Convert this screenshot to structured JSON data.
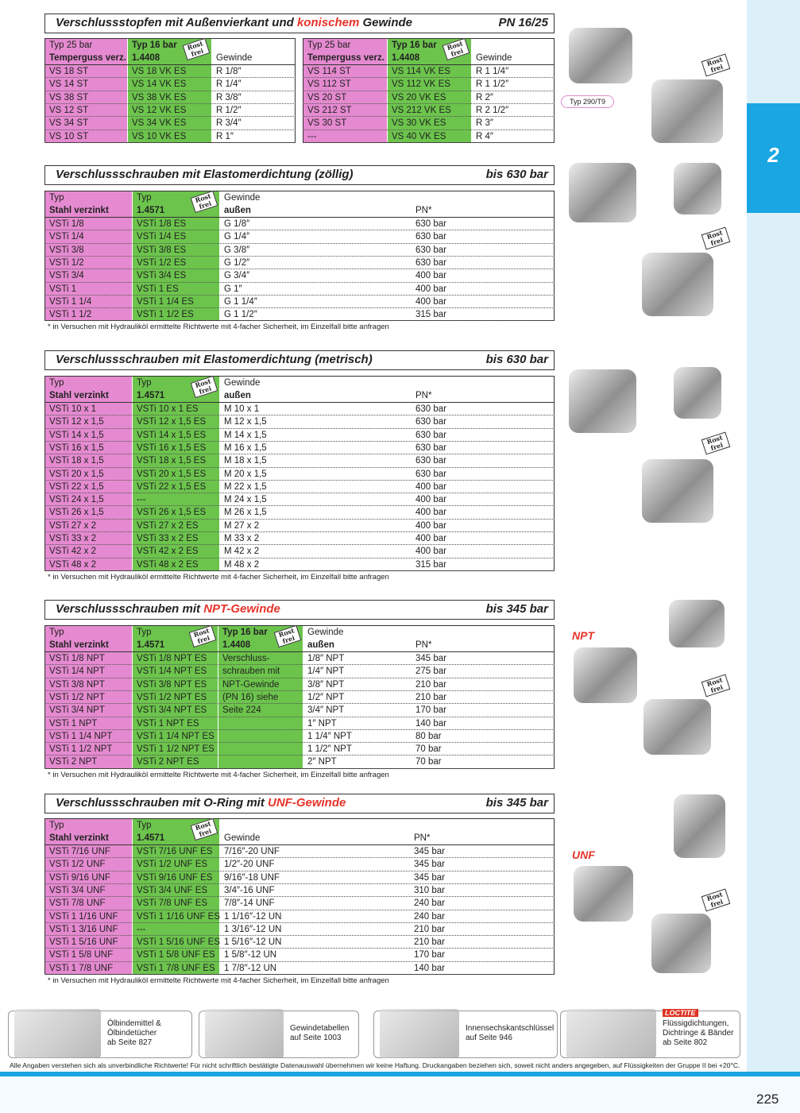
{
  "side_tab": "2",
  "page_number": "225",
  "badge": "Rost frei",
  "image_labels": {
    "type_label": "Typ 290/T9",
    "npt": "NPT",
    "unf": "UNF"
  },
  "sections": [
    {
      "title": [
        {
          "text": "Verschlussstopfen mit Außenvierkant und "
        },
        {
          "text": "konischem",
          "red": true
        },
        {
          "text": " Gewinde"
        }
      ],
      "rating": "PN 16/25",
      "tables": [
        {
          "colors": [
            "#e58ad0",
            "#6cc44c",
            null
          ],
          "headers": [
            [
              "Typ 25 bar",
              "Temperguss verz."
            ],
            [
              "Typ 16 bar",
              "1.4408"
            ],
            [
              "Gewinde"
            ]
          ],
          "rows": [
            [
              "VS 18 ST",
              "VS 18 VK ES",
              "R 1/8″"
            ],
            [
              "VS 14 ST",
              "VS 14 VK ES",
              "R 1/4″"
            ],
            [
              "VS 38 ST",
              "VS 38 VK ES",
              "R 3/8″"
            ],
            [
              "VS 12 ST",
              "VS 12 VK ES",
              "R 1/2″"
            ],
            [
              "VS 34 ST",
              "VS 34 VK ES",
              "R 3/4″"
            ],
            [
              "VS 10 ST",
              "VS 10 VK ES",
              "R 1″"
            ]
          ]
        },
        {
          "colors": [
            "#e58ad0",
            "#6cc44c",
            null
          ],
          "headers": [
            [
              "Typ 25 bar",
              "Temperguss verz."
            ],
            [
              "Typ 16 bar",
              "1.4408"
            ],
            [
              "Gewinde"
            ]
          ],
          "rows": [
            [
              "VS 114 ST",
              "VS 114 VK ES",
              "R 1 1/4″"
            ],
            [
              "VS 112 ST",
              "VS 112 VK ES",
              "R 1 1/2″"
            ],
            [
              "VS 20 ST",
              "VS 20 VK ES",
              "R 2″"
            ],
            [
              "VS 212 ST",
              "VS 212 VK ES",
              "R 2 1/2″"
            ],
            [
              "VS 30 ST",
              "VS 30 VK ES",
              "R 3″"
            ],
            [
              "---",
              "VS 40 VK ES",
              "R 4″"
            ]
          ]
        }
      ]
    },
    {
      "title": [
        {
          "text": "Verschlussschrauben mit Elastomerdichtung (zöllig)"
        }
      ],
      "rating": "bis 630 bar",
      "tables": [
        {
          "colors": [
            "#e58ad0",
            "#6cc44c",
            null,
            null
          ],
          "headers": [
            [
              "Typ",
              "Stahl verzinkt"
            ],
            [
              "Typ",
              "1.4571"
            ],
            [
              "Gewinde",
              "außen"
            ],
            [
              "PN*"
            ]
          ],
          "rows": [
            [
              "VSTi 1/8",
              "VSTi 1/8 ES",
              "G 1/8″",
              "630 bar"
            ],
            [
              "VSTi 1/4",
              "VSTi 1/4 ES",
              "G 1/4″",
              "630 bar"
            ],
            [
              "VSTi 3/8",
              "VSTi 3/8 ES",
              "G 3/8″",
              "630 bar"
            ],
            [
              "VSTi 1/2",
              "VSTi 1/2 ES",
              "G 1/2″",
              "630 bar"
            ],
            [
              "VSTi 3/4",
              "VSTi 3/4 ES",
              "G 3/4″",
              "400 bar"
            ],
            [
              "VSTi 1",
              "VSTi 1 ES",
              "G 1″",
              "400 bar"
            ],
            [
              "VSTi 1 1/4",
              "VSTi 1 1/4 ES",
              "G 1 1/4″",
              "400 bar"
            ],
            [
              "VSTi 1 1/2",
              "VSTi 1 1/2 ES",
              "G 1 1/2″",
              "315 bar"
            ]
          ]
        }
      ],
      "note": "* in Versuchen mit Hydrauliköl ermittelte Richtwerte mit 4-facher Sicherheit, im Einzelfall bitte anfragen"
    },
    {
      "title": [
        {
          "text": "Verschlussschrauben mit Elastomerdichtung (metrisch)"
        }
      ],
      "rating": "bis 630 bar",
      "tables": [
        {
          "colors": [
            "#e58ad0",
            "#6cc44c",
            null,
            null
          ],
          "headers": [
            [
              "Typ",
              "Stahl verzinkt"
            ],
            [
              "Typ",
              "1.4571"
            ],
            [
              "Gewinde",
              "außen"
            ],
            [
              "PN*"
            ]
          ],
          "rows": [
            [
              "VSTi 10 x 1",
              "VSTi 10 x 1 ES",
              "M 10 x 1",
              "630 bar"
            ],
            [
              "VSTi 12 x 1,5",
              "VSTi 12 x 1,5 ES",
              "M 12 x 1,5",
              "630 bar"
            ],
            [
              "VSTi 14 x 1,5",
              "VSTi 14 x 1,5 ES",
              "M 14 x 1,5",
              "630 bar"
            ],
            [
              "VSTi 16 x 1,5",
              "VSTi 16 x 1,5 ES",
              "M 16 x 1,5",
              "630 bar"
            ],
            [
              "VSTi 18 x 1,5",
              "VSTi 18 x 1,5 ES",
              "M 18 x 1,5",
              "630 bar"
            ],
            [
              "VSTi 20 x 1,5",
              "VSTi 20 x 1,5 ES",
              "M 20 x 1,5",
              "630 bar"
            ],
            [
              "VSTi 22 x 1,5",
              "VSTi 22 x 1,5 ES",
              "M 22 x 1,5",
              "400 bar"
            ],
            [
              "VSTi 24 x 1,5",
              "---",
              "M 24 x 1,5",
              "400 bar"
            ],
            [
              "VSTi 26 x 1,5",
              "VSTi 26 x 1,5 ES",
              "M 26 x 1,5",
              "400 bar"
            ],
            [
              "VSTi 27 x 2",
              "VSTi 27 x 2 ES",
              "M 27 x 2",
              "400 bar"
            ],
            [
              "VSTi 33 x 2",
              "VSTi 33 x 2 ES",
              "M 33 x 2",
              "400 bar"
            ],
            [
              "VSTi 42 x 2",
              "VSTi 42 x 2 ES",
              "M 42 x 2",
              "400 bar"
            ],
            [
              "VSTi 48 x 2",
              "VSTi 48 x 2 ES",
              "M 48 x 2",
              "315 bar"
            ]
          ]
        }
      ],
      "note": "* in Versuchen mit Hydrauliköl ermittelte Richtwerte mit 4-facher Sicherheit, im Einzelfall bitte anfragen"
    },
    {
      "title": [
        {
          "text": "Verschlussschrauben mit "
        },
        {
          "text": "NPT-Gewinde",
          "red": true
        }
      ],
      "rating": "bis 345 bar",
      "tables": [
        {
          "colors": [
            "#e58ad0",
            "#6cc44c",
            "#6cc44c",
            null,
            null
          ],
          "headers": [
            [
              "Typ",
              "Stahl verzinkt"
            ],
            [
              "Typ",
              "1.4571"
            ],
            [
              "Typ 16 bar",
              "1.4408"
            ],
            [
              "Gewinde",
              "außen"
            ],
            [
              "PN*"
            ]
          ],
          "rows": [
            [
              "VSTi 1/8 NPT",
              "VSTi 1/8 NPT ES",
              "Verschluss-",
              "1/8″ NPT",
              "345 bar"
            ],
            [
              "VSTi 1/4 NPT",
              "VSTi 1/4 NPT ES",
              "schrauben mit",
              "1/4″ NPT",
              "275 bar"
            ],
            [
              "VSTi 3/8 NPT",
              "VSTi 3/8 NPT ES",
              "NPT-Gewinde",
              "3/8″ NPT",
              "210 bar"
            ],
            [
              "VSTi 1/2 NPT",
              "VSTi 1/2 NPT ES",
              "(PN 16) siehe",
              "1/2″ NPT",
              "210 bar"
            ],
            [
              "VSTi 3/4 NPT",
              "VSTi 3/4 NPT ES",
              "Seite 224",
              "3/4″ NPT",
              "170 bar"
            ],
            [
              "VSTi 1 NPT",
              "VSTi 1 NPT ES",
              null,
              "1″ NPT",
              "140 bar"
            ],
            [
              "VSTi 1 1/4 NPT",
              "VSTi 1 1/4 NPT ES",
              null,
              "1 1/4″ NPT",
              "80 bar"
            ],
            [
              "VSTi 1 1/2 NPT",
              "VSTi 1 1/2 NPT ES",
              null,
              "1 1/2″ NPT",
              "70 bar"
            ],
            [
              "VSTi 2 NPT",
              "VSTi 2 NPT ES",
              null,
              "2″ NPT",
              "70 bar"
            ]
          ]
        }
      ],
      "note": "* in Versuchen mit Hydrauliköl ermittelte Richtwerte mit 4-facher Sicherheit, im Einzelfall bitte anfragen"
    },
    {
      "title": [
        {
          "text": "Verschlussschrauben mit O-Ring mit "
        },
        {
          "text": "UNF-Gewinde",
          "red": true
        }
      ],
      "rating": "bis 345 bar",
      "tables": [
        {
          "colors": [
            "#e58ad0",
            "#6cc44c",
            null,
            null
          ],
          "headers": [
            [
              "Typ",
              "Stahl verzinkt"
            ],
            [
              "Typ",
              "1.4571"
            ],
            [
              "Gewinde"
            ],
            [
              "PN*"
            ]
          ],
          "rows": [
            [
              "VSTi 7/16 UNF",
              "VSTi 7/16 UNF ES",
              "7/16″-20 UNF",
              "345 bar"
            ],
            [
              "VSTi 1/2 UNF",
              "VSTi 1/2 UNF ES",
              "1/2″-20 UNF",
              "345 bar"
            ],
            [
              "VSTi 9/16 UNF",
              "VSTi 9/16 UNF ES",
              "9/16″-18 UNF",
              "345 bar"
            ],
            [
              "VSTi 3/4 UNF",
              "VSTi 3/4 UNF ES",
              "3/4″-16 UNF",
              "310 bar"
            ],
            [
              "VSTi 7/8 UNF",
              "VSTi 7/8 UNF ES",
              "7/8″-14 UNF",
              "240 bar"
            ],
            [
              "VSTi 1 1/16 UNF",
              "VSTi 1 1/16 UNF ES",
              "1 1/16″-12 UN",
              "240 bar"
            ],
            [
              "VSTi 1 3/16 UNF",
              "---",
              "1 3/16″-12 UN",
              "210 bar"
            ],
            [
              "VSTi 1 5/16 UNF",
              "VSTi 1 5/16 UNF ES",
              "1 5/16″-12 UN",
              "210 bar"
            ],
            [
              "VSTi 1 5/8 UNF",
              "VSTi 1 5/8 UNF ES",
              "1 5/8″-12 UN",
              "170 bar"
            ],
            [
              "VSTi 1 7/8 UNF",
              "VSTi 1 7/8 UNF ES",
              "1 7/8″-12 UN",
              "140 bar"
            ]
          ]
        }
      ],
      "note": "* in Versuchen mit Hydrauliköl ermittelte Richtwerte mit 4-facher Sicherheit, im Einzelfall bitte anfragen"
    }
  ],
  "ads": [
    {
      "lines": [
        "Ölbindemittel &",
        "Ölbindetücher",
        "ab Seite 827"
      ]
    },
    {
      "lines": [
        "Gewindetabellen",
        "auf Seite 1003"
      ]
    },
    {
      "lines": [
        "Innensechskantschlüssel",
        "auf Seite 946"
      ]
    },
    {
      "logo": "LOCTITE",
      "lines": [
        "Flüssigdichtungen,",
        "Dichtringe & Bänder",
        "ab Seite 802"
      ]
    }
  ],
  "disclaimer": "Alle Angaben verstehen sich als unverbindliche Richtwerte! Für nicht schriftlich bestätigte Datenauswahl übernehmen wir keine Haftung. Druckangaben beziehen sich, soweit nicht anders angegeben, auf Flüssigkeiten der Gruppe II bei +20°C."
}
